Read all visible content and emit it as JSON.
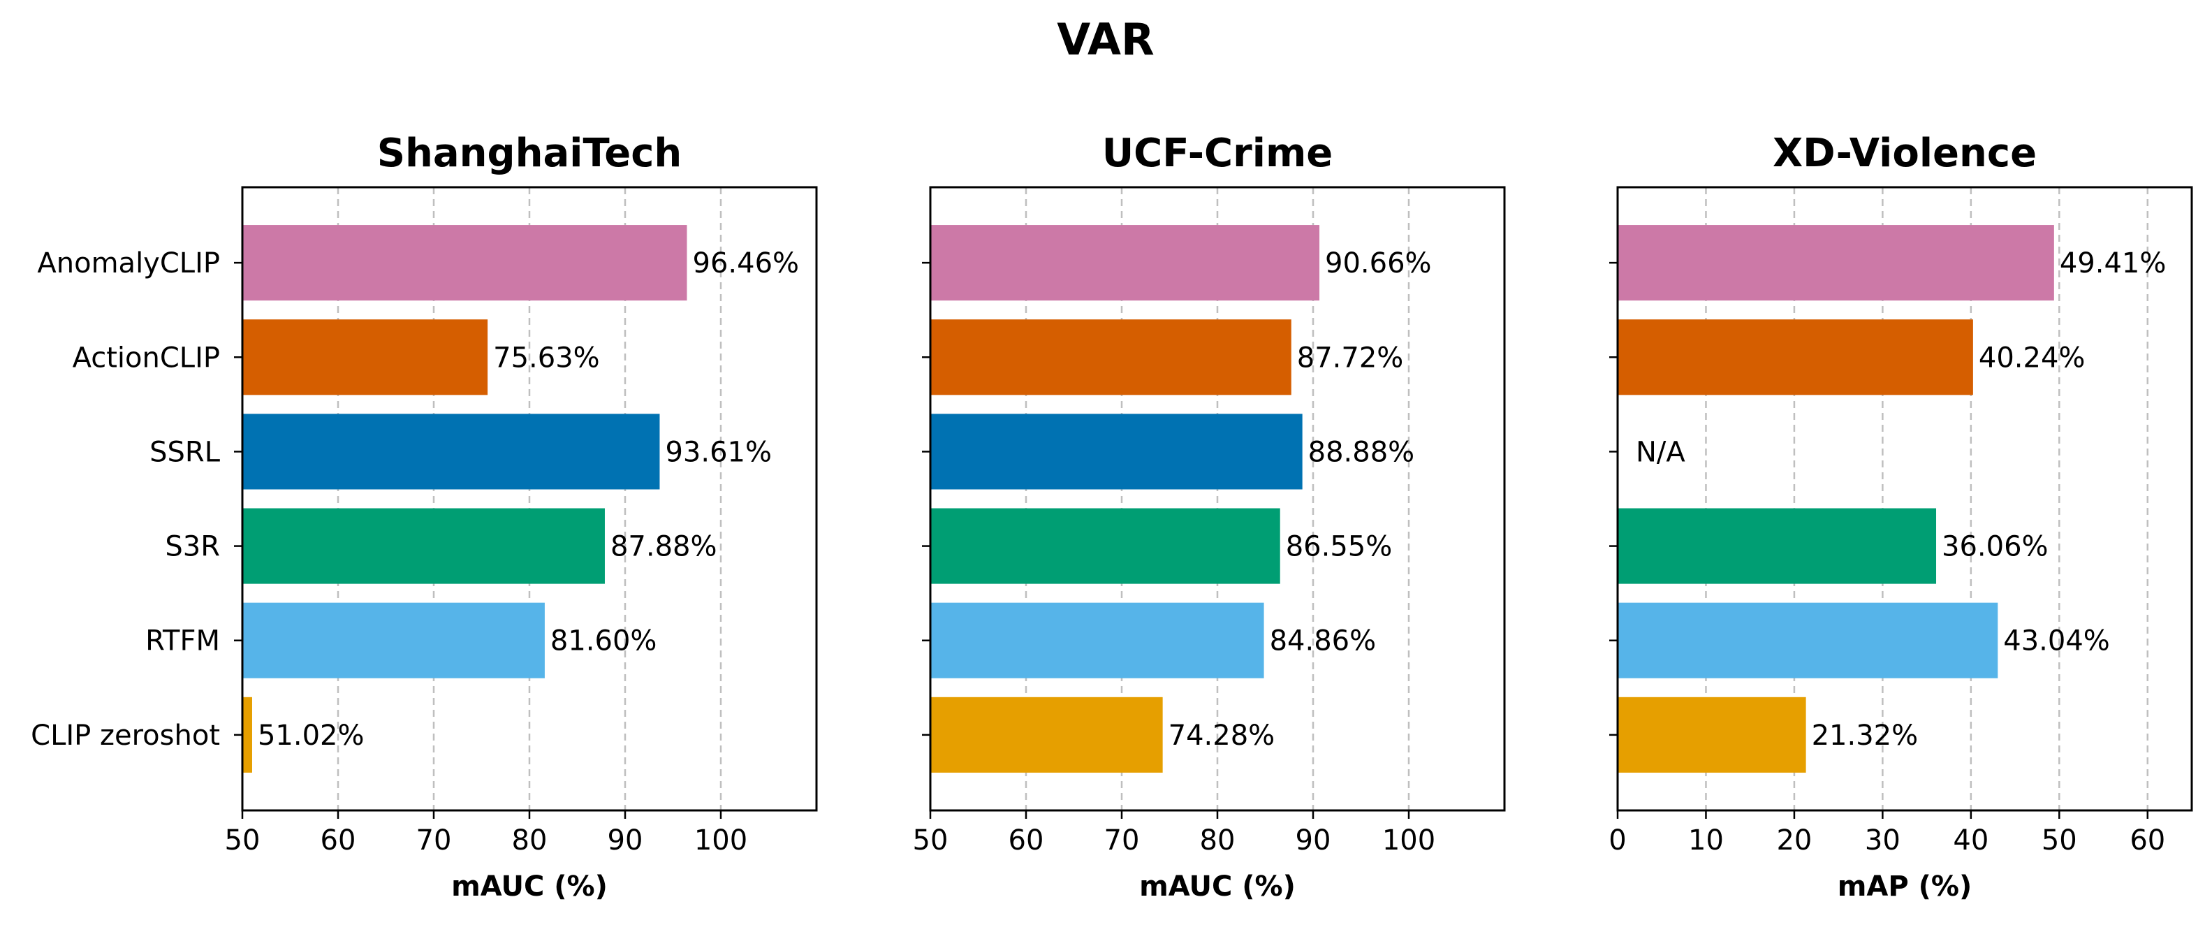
{
  "chart_data": {
    "type": "bar",
    "orientation": "horizontal",
    "title": "VAR",
    "categories": [
      "AnomalyCLIP",
      "ActionCLIP",
      "SSRL",
      "S3R",
      "RTFM",
      "CLIP zeroshot"
    ],
    "colors": [
      "#CC79A7",
      "#D55E00",
      "#0072B2",
      "#009E73",
      "#56B4E9",
      "#E69F00"
    ],
    "grid": "x-dashed",
    "subplots": [
      {
        "title": "ShanghaiTech",
        "xlabel": "mAUC (%)",
        "xlim": [
          50,
          110
        ],
        "xticks": [
          50,
          60,
          70,
          80,
          90,
          100
        ],
        "values": [
          96.46,
          75.63,
          93.61,
          87.88,
          81.6,
          51.02
        ],
        "labels": [
          "96.46%",
          "75.63%",
          "93.61%",
          "87.88%",
          "81.60%",
          "51.02%"
        ],
        "show_category_labels": true
      },
      {
        "title": "UCF-Crime",
        "xlabel": "mAUC (%)",
        "xlim": [
          50,
          110
        ],
        "xticks": [
          50,
          60,
          70,
          80,
          90,
          100
        ],
        "values": [
          90.66,
          87.72,
          88.88,
          86.55,
          84.86,
          74.28
        ],
        "labels": [
          "90.66%",
          "87.72%",
          "88.88%",
          "86.55%",
          "84.86%",
          "74.28%"
        ],
        "show_category_labels": false
      },
      {
        "title": "XD-Violence",
        "xlabel": "mAP (%)",
        "xlim": [
          0,
          65
        ],
        "xticks": [
          0,
          10,
          20,
          30,
          40,
          50,
          60
        ],
        "values": [
          49.41,
          40.24,
          null,
          36.06,
          43.04,
          21.32
        ],
        "labels": [
          "49.41%",
          "40.24%",
          "N/A",
          "36.06%",
          "43.04%",
          "21.32%"
        ],
        "show_category_labels": false
      }
    ]
  }
}
